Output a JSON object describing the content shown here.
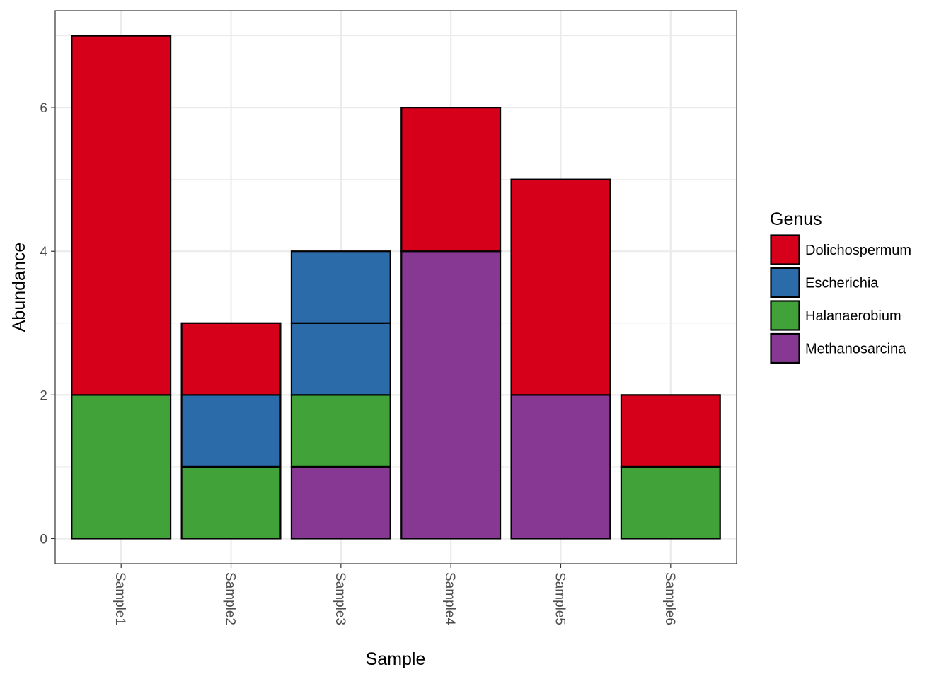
{
  "chart_data": {
    "type": "bar",
    "stacked": true,
    "title": "",
    "xlabel": "Sample",
    "ylabel": "Abundance",
    "ylim": [
      -0.35,
      7.35
    ],
    "yticks": [
      0,
      2,
      4,
      6
    ],
    "grid": true,
    "legend_position": "right",
    "categories": [
      "Sample1",
      "Sample2",
      "Sample3",
      "Sample4",
      "Sample5",
      "Sample6"
    ],
    "legend": {
      "title": "Genus",
      "entries": [
        {
          "name": "Dolichospermum",
          "color": "#D7001A"
        },
        {
          "name": "Escherichia",
          "color": "#2C6BAA"
        },
        {
          "name": "Halanaerobium",
          "color": "#41A23A"
        },
        {
          "name": "Methanosarcina",
          "color": "#863893"
        }
      ]
    },
    "stacks": [
      {
        "category": "Sample1",
        "segments": [
          {
            "genus": "Halanaerobium",
            "value": 2
          },
          {
            "genus": "Dolichospermum",
            "value": 5
          }
        ]
      },
      {
        "category": "Sample2",
        "segments": [
          {
            "genus": "Halanaerobium",
            "value": 1
          },
          {
            "genus": "Escherichia",
            "value": 1
          },
          {
            "genus": "Dolichospermum",
            "value": 1
          }
        ]
      },
      {
        "category": "Sample3",
        "segments": [
          {
            "genus": "Methanosarcina",
            "value": 1
          },
          {
            "genus": "Halanaerobium",
            "value": 1
          },
          {
            "genus": "Escherichia",
            "value": 1
          },
          {
            "genus": "Escherichia",
            "value": 1
          }
        ]
      },
      {
        "category": "Sample4",
        "segments": [
          {
            "genus": "Methanosarcina",
            "value": 4
          },
          {
            "genus": "Dolichospermum",
            "value": 2
          }
        ]
      },
      {
        "category": "Sample5",
        "segments": [
          {
            "genus": "Methanosarcina",
            "value": 2
          },
          {
            "genus": "Dolichospermum",
            "value": 3
          }
        ]
      },
      {
        "category": "Sample6",
        "segments": [
          {
            "genus": "Halanaerobium",
            "value": 1
          },
          {
            "genus": "Dolichospermum",
            "value": 1
          }
        ]
      }
    ]
  }
}
